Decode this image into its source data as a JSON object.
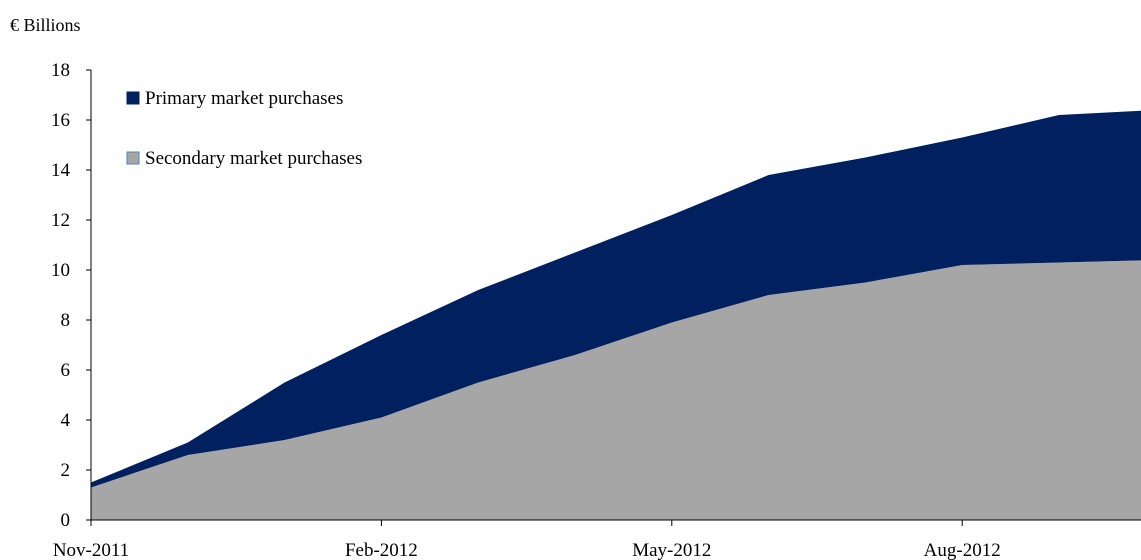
{
  "chart_data": {
    "type": "area",
    "stacked": true,
    "unit_label": "€ Billions",
    "x": [
      "Nov-2011",
      "Dec-2011",
      "Jan-2012",
      "Feb-2012",
      "Mar-2012",
      "Apr-2012",
      "May-2012",
      "Jun-2012",
      "Jul-2012",
      "Aug-2012",
      "Sep-2012",
      "Oct-2012"
    ],
    "x_tick_labels": [
      "Nov-2011",
      "Feb-2012",
      "May-2012",
      "Aug-2012"
    ],
    "y_ticks": [
      "0",
      "2",
      "4",
      "6",
      "8",
      "10",
      "12",
      "14",
      "16",
      "18"
    ],
    "ylim": [
      0,
      18
    ],
    "grid": false,
    "legend_position": "top-left",
    "series": [
      {
        "name": "Secondary market purchases",
        "color": "#a6a6a6",
        "values": [
          1.3,
          2.6,
          3.2,
          4.1,
          5.5,
          6.6,
          7.9,
          9.0,
          9.5,
          10.2,
          10.3,
          10.4
        ]
      },
      {
        "name": "Primary market purchases",
        "color": "#002060",
        "values": [
          0.2,
          0.5,
          2.3,
          3.3,
          3.7,
          4.1,
          4.3,
          4.8,
          5.0,
          5.1,
          5.9,
          6.0
        ]
      }
    ]
  }
}
